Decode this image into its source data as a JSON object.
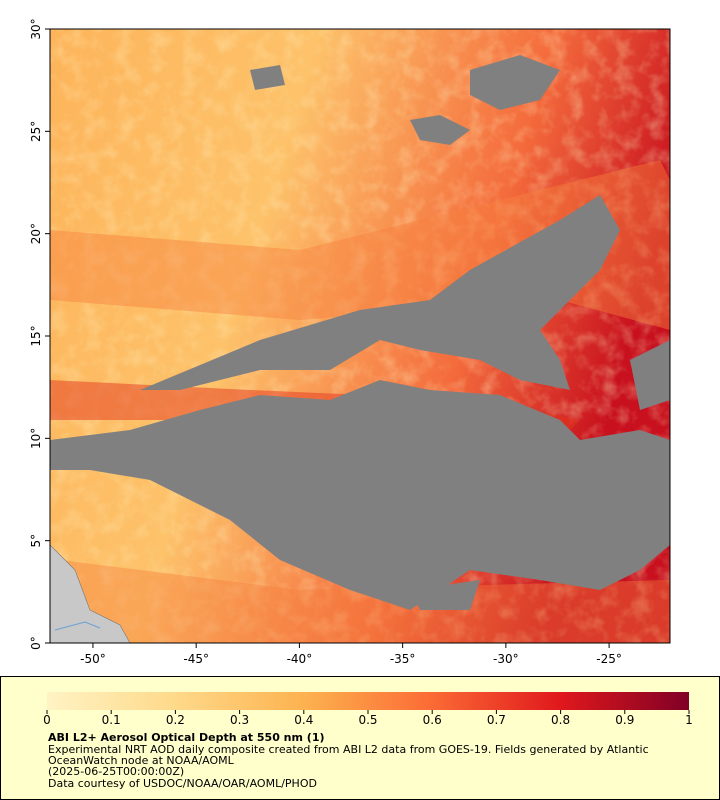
{
  "map": {
    "xlim": [
      -52.08,
      -22.05
    ],
    "ylim": [
      0,
      30
    ],
    "xticks": [
      {
        "value": -50,
        "label": "-50°"
      },
      {
        "value": -45,
        "label": "-45°"
      },
      {
        "value": -40,
        "label": "-40°"
      },
      {
        "value": -35,
        "label": "-35°"
      },
      {
        "value": -30,
        "label": "-30°"
      },
      {
        "value": -25,
        "label": "-25°"
      }
    ],
    "yticks": [
      {
        "value": 0,
        "label": "0°"
      },
      {
        "value": 5,
        "label": "5°"
      },
      {
        "value": 10,
        "label": "10°"
      },
      {
        "value": 15,
        "label": "15°"
      },
      {
        "value": 20,
        "label": "20°"
      },
      {
        "value": 25,
        "label": "25°"
      },
      {
        "value": 30,
        "label": "30°"
      }
    ]
  },
  "colorbar": {
    "lim": [
      0,
      1
    ],
    "ticks": [
      0,
      0.1,
      0.2,
      0.3,
      0.4,
      0.5,
      0.6,
      0.7,
      0.8,
      0.9,
      1
    ]
  },
  "caption": {
    "title": "ABI L2+ Aerosol Optical Depth at 550 nm (1)",
    "lines": [
      "Experimental NRT AOD daily composite created from ABI L2 data from GOES-19. Fields generated by Atlantic",
      "OceanWatch node at NOAA/AOML",
      "(2025-06-25T00:00:00Z)",
      "Data courtesy of USDOC/NOAA/OAR/AOML/PHOD"
    ]
  }
}
